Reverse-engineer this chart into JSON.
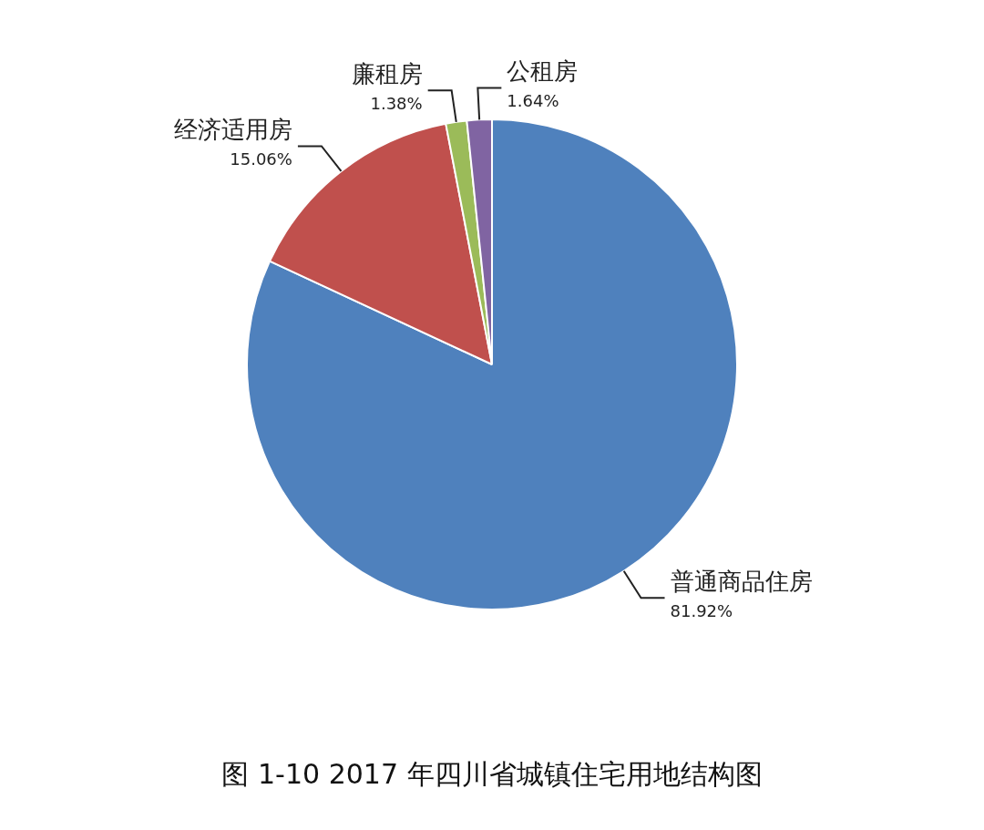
{
  "chart_data": {
    "type": "pie",
    "title": "图 1-10 2017 年四川省城镇住宅用地结构图",
    "categories": [
      "普通商品住房",
      "经济适用房",
      "廉租房",
      "公租房"
    ],
    "values": [
      81.92,
      15.06,
      1.38,
      1.64
    ],
    "colors": [
      "#4f81bd",
      "#c0504d",
      "#9bbb59",
      "#8064a2"
    ],
    "value_labels": [
      "81.92%",
      "15.06%",
      "1.38%",
      "1.64%"
    ],
    "legend": false
  }
}
